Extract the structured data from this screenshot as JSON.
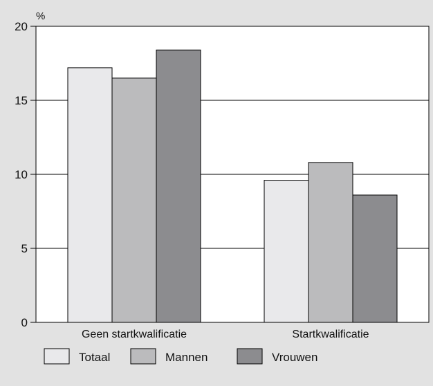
{
  "chart_data": {
    "type": "bar",
    "ylabel": "%",
    "ylim": [
      0,
      20
    ],
    "yticks": [
      0,
      5,
      10,
      15,
      20
    ],
    "grid": true,
    "legend_placement": "bottom",
    "categories": [
      "Geen startkwalificatie",
      "Startkwalificatie"
    ],
    "series": [
      {
        "name": "Totaal",
        "values": [
          17.2,
          9.6
        ],
        "color": "#e9e9eb"
      },
      {
        "name": "Mannen",
        "values": [
          16.5,
          10.8
        ],
        "color": "#bbbbbd"
      },
      {
        "name": "Vrouwen",
        "values": [
          18.4,
          8.6
        ],
        "color": "#8c8c8f"
      }
    ]
  }
}
